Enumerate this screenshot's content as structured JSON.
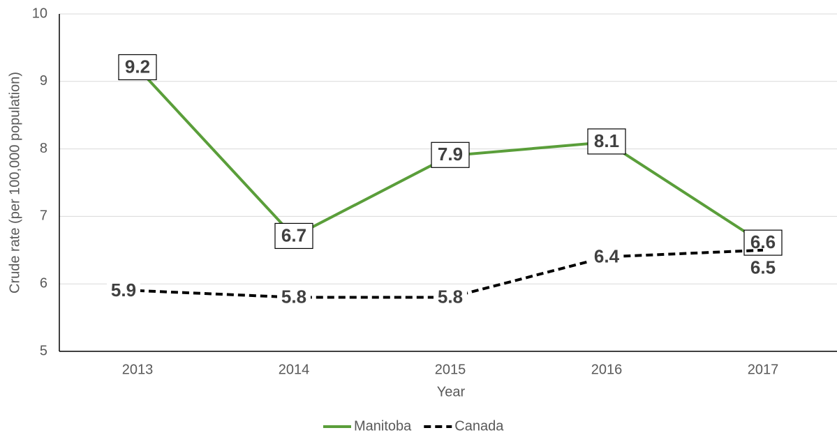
{
  "chart_data": {
    "type": "line",
    "x_label": "Year",
    "y_label": "Crude rate (per 100,000 population)",
    "categories": [
      "2013",
      "2014",
      "2015",
      "2016",
      "2017"
    ],
    "series": [
      {
        "name": "Manitoba",
        "color": "#5a9e3a",
        "dash": "solid",
        "values": [
          9.2,
          6.7,
          7.9,
          8.1,
          6.6
        ]
      },
      {
        "name": "Canada",
        "color": "#000000",
        "dash": "dashed",
        "values": [
          5.9,
          5.8,
          5.8,
          6.4,
          6.5
        ]
      }
    ],
    "ylim": [
      5,
      10
    ],
    "yticks": [
      5,
      6,
      7,
      8,
      9,
      10
    ],
    "grid": true,
    "legend": "bottom"
  }
}
